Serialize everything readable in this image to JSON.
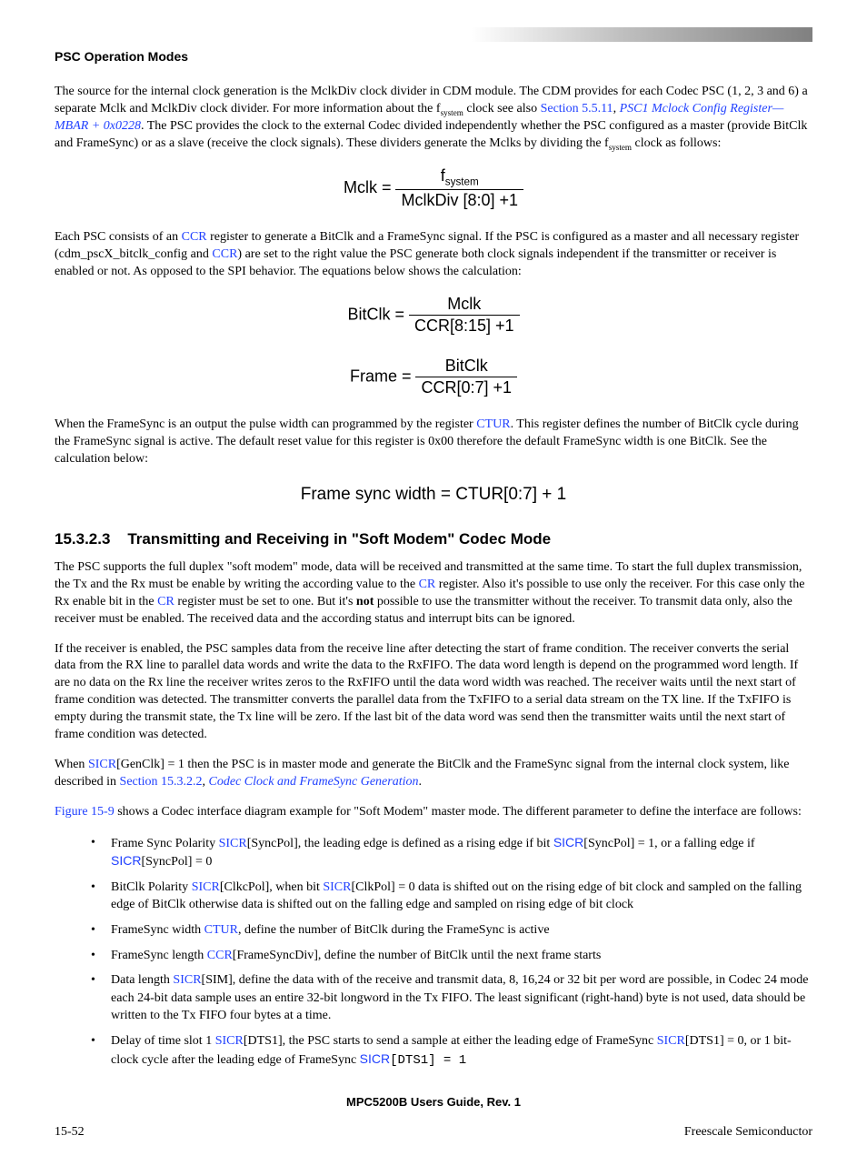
{
  "header": {
    "title": "PSC Operation Modes"
  },
  "para1_a": "The source for the internal clock generation is the MclkDiv clock divider in CDM module. The CDM provides for each Codec PSC (1, 2, 3 and 6) a separate Mclk and MclkDiv clock divider. For more information about the f",
  "para1_sub": "system",
  "para1_b": " clock see also ",
  "para1_link1": "Section 5.5.11",
  "para1_c": ", ",
  "para1_link2": "PSC1 Mclock Config Register—MBAR + 0x0228",
  "para1_d": ". The PSC provides the clock to the external Codec divided independently whether the PSC configured as a master (provide BitClk and FrameSync) or as a slave (receive the clock signals). These dividers generate the Mclks by dividing the f",
  "para1_e": " clock as follows:",
  "formula1": {
    "lhs": "Mclk = ",
    "num_a": "f",
    "num_sub": "system",
    "den": "MclkDiv [8:0] +1"
  },
  "para2_a": "Each PSC consists of an ",
  "ccr": "CCR",
  "para2_b": " register to generate a BitClk and a FrameSync signal. If the PSC is configured as a master and all necessary register (cdm_pscX_bitclk_config and ",
  "para2_c": ") are set to the right value the PSC generate both clock signals independent if the transmitter or receiver is enabled or not. As opposed to the SPI behavior. The equations below shows the calculation:",
  "formula2": {
    "lhs": "BitClk = ",
    "num": "Mclk",
    "den": "CCR[8:15] +1"
  },
  "formula3": {
    "lhs": "Frame = ",
    "num": "BitClk",
    "den": "CCR[0:7] +1"
  },
  "para3_a": "When the FrameSync is an output the pulse width can programmed by the register ",
  "ctur": "CTUR",
  "para3_b": ". This register defines the number of BitClk cycle during the FrameSync signal is active. The default reset value for this register is 0x00 therefore the default FrameSync width is one BitClk. See the calculation below:",
  "formula4": "Frame sync width = CTUR[0:7] + 1",
  "section": {
    "num": "15.3.2.3",
    "title": "Transmitting and Receiving in \"Soft Modem\" Codec Mode"
  },
  "para4_a": "The PSC supports the full duplex \"soft modem\" mode, data will be received and transmitted at the same time. To start the full duplex transmission, the Tx and the Rx must be enable by writing the according value to the ",
  "cr": "CR",
  "para4_b": " register. Also it's possible to use only the receiver. For this case only the Rx enable bit in the ",
  "para4_c": " register must be set to one. But it's ",
  "not": "not",
  "para4_d": " possible to use the transmitter without the receiver. To transmit data only, also the receiver must be enabled. The received data and the according status and interrupt bits can be ignored.",
  "para5": "If the receiver is enabled, the PSC samples data from the receive line after detecting the start of frame condition. The receiver converts the serial data from the RX line to parallel data words and write the data to the RxFIFO. The data word length is depend on the programmed word length. If are no data on the Rx line the receiver writes zeros to the RxFIFO until the data word width was reached. The receiver waits until the next start of frame condition was detected. The transmitter converts the parallel data from the TxFIFO to a serial data stream on the TX line. If the TxFIFO is empty during the transmit state, the Tx line will be zero. If the last bit of the data word was send then the transmitter waits until the next start of frame condition was detected.",
  "para6_a": "When ",
  "sicr": "SICR",
  "para6_b": "[GenClk] = 1 then the PSC is in master mode and generate the BitClk and the FrameSync signal from the internal clock system, like described in ",
  "para6_link1": "Section 15.3.2.2",
  "para6_c": ", ",
  "para6_link2": "Codec Clock and FrameSync Generation",
  "para6_d": ".",
  "para7_a": "Figure 15-9",
  "para7_b": " shows a Codec interface diagram example for \"Soft Modem\" master mode. The different parameter to define the interface are follows:",
  "bullets": [
    {
      "pre": "Frame Sync Polarity ",
      "l1": "SICR",
      "mid1": "[SyncPol], the leading edge is defined as a rising edge if bit ",
      "l2_sans": "SICR",
      "mid2": "[SyncPol] = 1, or a falling edge if ",
      "l3_sans": "SICR",
      "post": "[SyncPol] = 0"
    },
    {
      "pre": "BitClk Polarity ",
      "l1": "SICR",
      "mid1": "[ClkcPol], when bit ",
      "l2": "SICR",
      "mid2": "[ClkPol] = 0 data is shifted out on the rising edge of bit clock and sampled on the falling edge of BitClk otherwise data is shifted out on the falling edge and sampled on rising edge of bit clock"
    },
    {
      "pre": "FrameSync width ",
      "l1": "CTUR",
      "mid1": ", define the number of BitClk during the FrameSync is active"
    },
    {
      "pre": "FrameSync length ",
      "l1": "CCR",
      "mid1": "[FrameSyncDiv], define the number of BitClk until the next frame starts"
    },
    {
      "pre": "Data length ",
      "l1": "SICR",
      "mid1": "[SIM], define the data with of the receive and transmit data, 8, 16,24 or 32 bit per word are possible, in Codec 24 mode each 24-bit data sample uses an entire 32-bit longword in the Tx FIFO. The least significant (right-hand) byte is not used, data should be written to the Tx FIFO four bytes at a time."
    },
    {
      "pre": "Delay of time slot 1 ",
      "l1": "SICR",
      "mid1": "[DTS1], the PSC starts to send a sample at either the leading edge of FrameSync ",
      "l2": "SICR",
      "mid2": "[DTS1] = 0, or 1 bit-clock cycle after the leading edge of FrameSync ",
      "l3_sans": "SICR",
      "post": "[DTS1] = 1",
      "post_mono": true
    }
  ],
  "footer": {
    "center": "MPC5200B Users Guide, Rev. 1",
    "left": "15-52",
    "right": "Freescale Semiconductor"
  }
}
